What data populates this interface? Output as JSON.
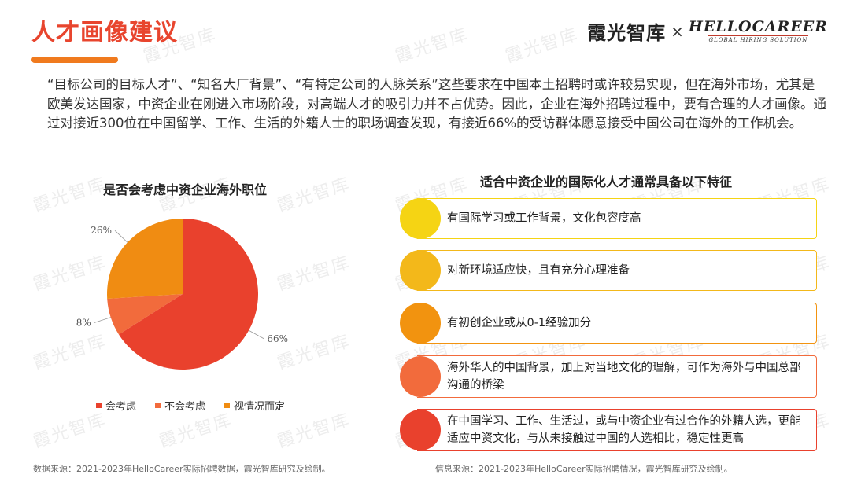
{
  "header": {
    "title": "人才画像建议",
    "brand_cn": "霞光智库",
    "brand_x": "×",
    "brand_en": "HELLOCAREER",
    "brand_en_sub": "GLOBAL HIRING SOLUTION"
  },
  "intro": "“目标公司的目标人才”、“知名大厂背景”、“有特定公司的人脉关系”这些要求在中国本土招聘时或许较易实现，但在海外市场，尤其是欧美发达国家，中资企业在刚进入市场阶段，对高端人才的吸引力并不占优势。因此，企业在海外招聘过程中，要有合理的人才画像。通过对接近300位在中国留学、工作、生活的外籍人士的职场调查发现，有接近66%的受访群体愿意接受中国公司在海外的工作机会。",
  "watermark": "霞光智库",
  "chart_data": {
    "type": "pie",
    "title": "是否会考虑中资企业海外职位",
    "slices": [
      {
        "name": "会考虑",
        "value": 66,
        "label": "66%",
        "color": "#e9412d"
      },
      {
        "name": "不会考虑",
        "value": 8,
        "label": "8%",
        "color": "#f26b3c"
      },
      {
        "name": "视情况而定",
        "value": 26,
        "label": "26%",
        "color": "#f08c12"
      }
    ],
    "legend_position": "bottom"
  },
  "features": {
    "title": "适合中资企业的国际化人才通常具备以下特征",
    "items": [
      {
        "text": "有国际学习或工作背景，文化包容度高",
        "color": "#f5d414"
      },
      {
        "text": "对新环境适应快，且有充分心理准备",
        "color": "#f3b81a"
      },
      {
        "text": "有初创企业或从0-1经验加分",
        "color": "#f2930f"
      },
      {
        "text": "海外华人的中国背景，加上对当地文化的理解，可作为海外与中国总部沟通的桥梁",
        "color": "#f26b3c"
      },
      {
        "text": "在中国学习、工作、生活过，或与中资企业有过合作的外籍人选，更能适应中资文化，与从未接触过中国的人选相比，稳定性更高",
        "color": "#e9412d"
      }
    ]
  },
  "sources": {
    "left": "数据来源：2021-2023年HelloCareer实际招聘数据，霞光智库研究及绘制。",
    "right": "信息来源：2021-2023年HelloCareer实际招聘情况，霞光智库研究及绘制。"
  }
}
